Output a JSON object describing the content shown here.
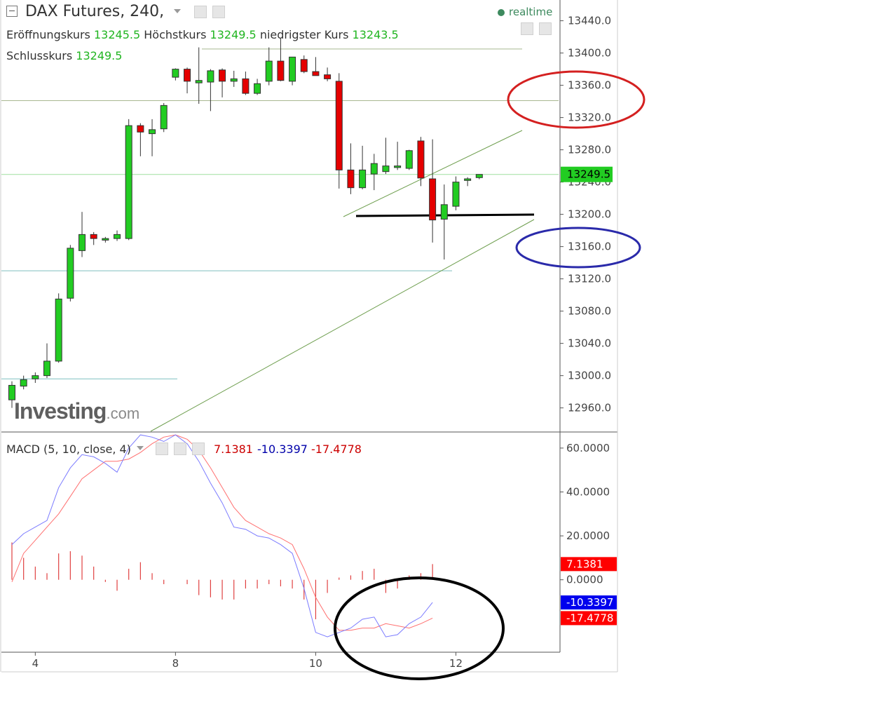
{
  "header": {
    "title": "DAX Futures, 240,",
    "open_label": "Eröffnungskurs",
    "open_value": "13245.5",
    "high_label": "Höchstkurs",
    "high_value": "13249.5",
    "low_label": "niedrigster Kurs",
    "low_value": "13243.5",
    "close_label": "Schlusskurs",
    "close_value": "13249.5",
    "realtime": "realtime"
  },
  "logo": {
    "main": "Investing",
    "suffix": ".com"
  },
  "macd_header": {
    "label": "MACD (5, 10, close, 4)",
    "v1": "7.1381",
    "v2": "-10.3397",
    "v3": "-17.4778"
  },
  "colors": {
    "up": "#22cc22",
    "down": "#e50000",
    "macd_line": "#7b7bff",
    "signal_line": "#ff7070",
    "histogram": "#e04040",
    "ellipse_red": "#d42020",
    "ellipse_blue": "#2a2aaa",
    "ellipse_black": "#000000",
    "badge_green": "#22cc22",
    "badge_red": "#ff0000",
    "badge_blue": "#0000ee"
  },
  "chart_data": [
    {
      "type": "candlestick",
      "y_ticks": [
        "13440.0",
        "13400.0",
        "13360.0",
        "13320.0",
        "13280.0",
        "13240.0",
        "13200.0",
        "13160.0",
        "13120.0",
        "13080.0",
        "13040.0",
        "13000.0",
        "12960.0"
      ],
      "y_range": [
        12931,
        13464
      ],
      "x_ticks": [
        "4",
        "8",
        "10",
        "12"
      ],
      "x_tick_candle_index": [
        2,
        14,
        26,
        38
      ],
      "last_price_badge": "13249.5",
      "last_price": 13249.5,
      "candles": [
        {
          "o": 12970,
          "h": 12993,
          "l": 12960,
          "c": 12988
        },
        {
          "o": 12987,
          "h": 13000,
          "l": 12983,
          "c": 12995
        },
        {
          "o": 12996,
          "h": 13004,
          "l": 12991,
          "c": 13000
        },
        {
          "o": 13000,
          "h": 13040,
          "l": 12997,
          "c": 13018
        },
        {
          "o": 13018,
          "h": 13102,
          "l": 13016,
          "c": 13095
        },
        {
          "o": 13096,
          "h": 13162,
          "l": 13092,
          "c": 13158
        },
        {
          "o": 13155,
          "h": 13203,
          "l": 13147,
          "c": 13175
        },
        {
          "o": 13175,
          "h": 13178,
          "l": 13162,
          "c": 13170
        },
        {
          "o": 13168,
          "h": 13172,
          "l": 13165,
          "c": 13170
        },
        {
          "o": 13170,
          "h": 13180,
          "l": 13167,
          "c": 13175
        },
        {
          "o": 13170,
          "h": 13318,
          "l": 13168,
          "c": 13310
        },
        {
          "o": 13310,
          "h": 13313,
          "l": 13272,
          "c": 13302
        },
        {
          "o": 13300,
          "h": 13318,
          "l": 13272,
          "c": 13305
        },
        {
          "o": 13306,
          "h": 13338,
          "l": 13302,
          "c": 13335
        },
        {
          "o": 13370,
          "h": 13381,
          "l": 13366,
          "c": 13380
        },
        {
          "o": 13380,
          "h": 13382,
          "l": 13350,
          "c": 13365
        },
        {
          "o": 13363,
          "h": 13407,
          "l": 13337,
          "c": 13366
        },
        {
          "o": 13364,
          "h": 13380,
          "l": 13328,
          "c": 13378
        },
        {
          "o": 13379,
          "h": 13381,
          "l": 13345,
          "c": 13365
        },
        {
          "o": 13365,
          "h": 13378,
          "l": 13358,
          "c": 13368
        },
        {
          "o": 13368,
          "h": 13377,
          "l": 13348,
          "c": 13350
        },
        {
          "o": 13350,
          "h": 13368,
          "l": 13348,
          "c": 13362
        },
        {
          "o": 13365,
          "h": 13407,
          "l": 13360,
          "c": 13390
        },
        {
          "o": 13390,
          "h": 13418,
          "l": 13365,
          "c": 13366
        },
        {
          "o": 13365,
          "h": 13395,
          "l": 13360,
          "c": 13395
        },
        {
          "o": 13392,
          "h": 13397,
          "l": 13375,
          "c": 13377
        },
        {
          "o": 13377,
          "h": 13395,
          "l": 13372,
          "c": 13372
        },
        {
          "o": 13373,
          "h": 13382,
          "l": 13365,
          "c": 13368
        },
        {
          "o": 13365,
          "h": 13375,
          "l": 13232,
          "c": 13255
        },
        {
          "o": 13255,
          "h": 13288,
          "l": 13225,
          "c": 13233
        },
        {
          "o": 13233,
          "h": 13285,
          "l": 13231,
          "c": 13255
        },
        {
          "o": 13250,
          "h": 13275,
          "l": 13230,
          "c": 13263
        },
        {
          "o": 13253,
          "h": 13295,
          "l": 13250,
          "c": 13260
        },
        {
          "o": 13258,
          "h": 13290,
          "l": 13255,
          "c": 13260
        },
        {
          "o": 13257,
          "h": 13280,
          "l": 13255,
          "c": 13279
        },
        {
          "o": 13291,
          "h": 13296,
          "l": 13235,
          "c": 13245
        },
        {
          "o": 13244,
          "h": 13293,
          "l": 13165,
          "c": 13193
        },
        {
          "o": 13194,
          "h": 13237,
          "l": 13144,
          "c": 13212
        },
        {
          "o": 13210,
          "h": 13247,
          "l": 13205,
          "c": 13240
        },
        {
          "o": 13242,
          "h": 13246,
          "l": 13235,
          "c": 13244
        },
        {
          "o": 13245.5,
          "h": 13249.5,
          "l": 13243.5,
          "c": 13249.5
        }
      ]
    },
    {
      "type": "line",
      "title": "MACD (5, 10, close, 4)",
      "y_ticks": [
        "60.0000",
        "40.0000",
        "20.0000",
        "0.0000"
      ],
      "y_range": [
        -33,
        67
      ],
      "series": [
        {
          "values": [
            16,
            21,
            24,
            27,
            42,
            51,
            57,
            56,
            53,
            49,
            60,
            66,
            65,
            63,
            66,
            62,
            54,
            44,
            35,
            24,
            23,
            20,
            19,
            16,
            12,
            -4,
            -24,
            -26,
            -24,
            -22,
            -18,
            -17,
            -26,
            -25,
            -20,
            -17,
            -10.34
          ]
        },
        {
          "values": [
            -1,
            12,
            18,
            24,
            30,
            38,
            46,
            50,
            54,
            54,
            55,
            58,
            62,
            65,
            66,
            64,
            59,
            51,
            42,
            33,
            27,
            24,
            21,
            19,
            16,
            5,
            -8,
            -17,
            -23,
            -23,
            -22,
            -22,
            -20,
            -21,
            -22,
            -20,
            -17.48
          ]
        },
        {
          "values": [
            17,
            10,
            6,
            3,
            12,
            13,
            11,
            6,
            -1,
            -5,
            5,
            8,
            3,
            -2,
            0,
            -2,
            -7,
            -8,
            -9,
            -9,
            -4,
            -4,
            -2,
            -3,
            -4,
            -9,
            -18,
            -6,
            1,
            2,
            4,
            5,
            -6,
            -4,
            2,
            3,
            7.14
          ]
        }
      ],
      "last_values_badges": [
        "7.1381",
        "-10.3397",
        "-17.4778"
      ]
    }
  ]
}
